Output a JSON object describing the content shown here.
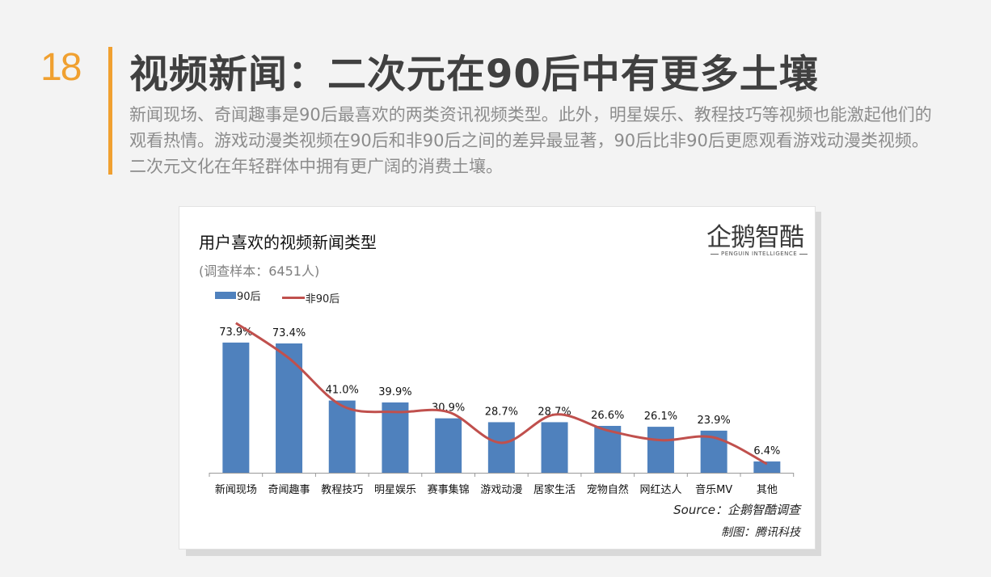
{
  "header": {
    "page_number": "18",
    "title": "视频新闻：二次元在90后中有更多土壤",
    "description": "新闻现场、奇闻趣事是90后最喜欢的两类资讯视频类型。此外，明星娱乐、教程技巧等视频也能激起他们的观看热情。游戏动漫类视频在90后和非90后之间的差异最显著，90后比非90后更愿观看游戏动漫类视频。二次元文化在年轻群体中拥有更广阔的消费土壤。",
    "accent_color": "#f0a030"
  },
  "logo": {
    "name": "企鹅智酷",
    "tagline": "PENGUIN INTELLIGENCE"
  },
  "chart_data": {
    "type": "bar",
    "title": "用户喜欢的视频新闻类型",
    "subtitle": "(调查样本：6451人)",
    "categories": [
      "新闻现场",
      "奇闻趣事",
      "教程技巧",
      "明星娱乐",
      "赛事集锦",
      "游戏动漫",
      "居家生活",
      "宠物自然",
      "网红达人",
      "音乐MV",
      "其他"
    ],
    "series": [
      {
        "name": "90后",
        "type": "bar",
        "color": "#4f81bd",
        "values": [
          73.9,
          73.4,
          41.0,
          39.9,
          30.9,
          28.7,
          28.7,
          26.6,
          26.1,
          23.9,
          6.4
        ],
        "labels": [
          "73.9%",
          "73.4%",
          "41.0%",
          "39.9%",
          "30.9%",
          "28.7%",
          "28.7%",
          "26.6%",
          "26.1%",
          "23.9%",
          "6.4%"
        ]
      },
      {
        "name": "非90后",
        "type": "line",
        "color": "#c0504d",
        "values": [
          85.0,
          65.0,
          38.0,
          34.5,
          34.5,
          17.0,
          33.0,
          24.0,
          18.5,
          20.0,
          5.0
        ]
      }
    ],
    "ylim": [
      0,
      100
    ],
    "legend_position": "top-left",
    "grid": false
  },
  "footer": {
    "source": "Source：企鹅智酷调查",
    "maker": "制图：腾讯科技"
  }
}
